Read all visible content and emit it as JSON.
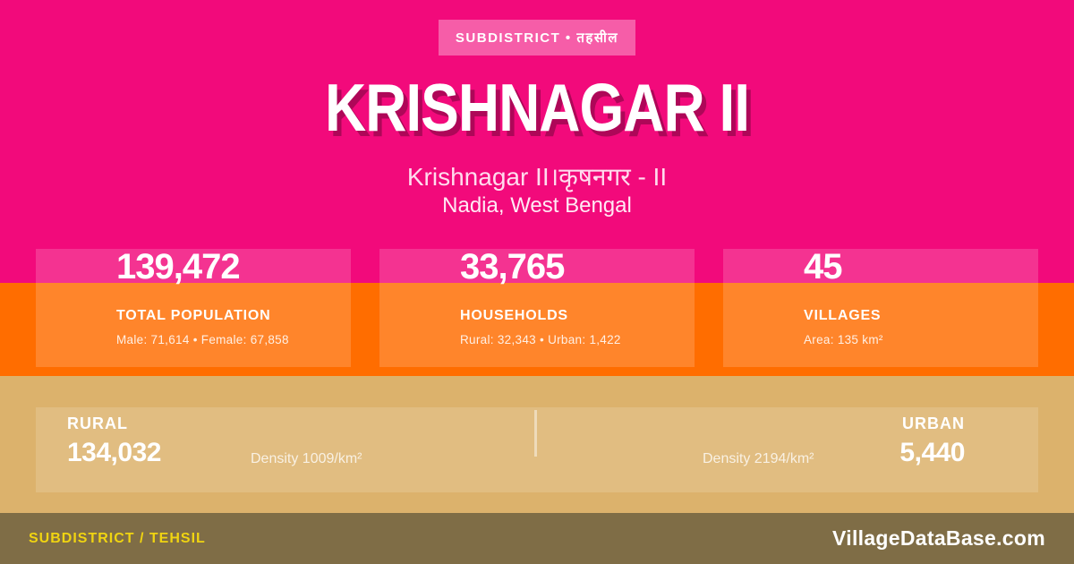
{
  "badge": {
    "label": "SUBDISTRICT • तहसील"
  },
  "header": {
    "title": "KRISHNAGAR II",
    "subtitle": "Krishnagar II।कृषनगर - II",
    "location": "Nadia, West Bengal"
  },
  "stats": [
    {
      "value": "139,472",
      "label": "TOTAL POPULATION",
      "detail": "Male: 71,614 • Female: 67,858"
    },
    {
      "value": "33,765",
      "label": "HOUSEHOLDS",
      "detail": "Rural: 32,343 • Urban: 1,422"
    },
    {
      "value": "45",
      "label": "VILLAGES",
      "detail": "Area: 135 km²"
    }
  ],
  "split": {
    "rural": {
      "label": "RURAL",
      "value": "134,032",
      "density": "Density 1009/km²"
    },
    "urban": {
      "label": "URBAN",
      "value": "5,440",
      "density": "Density 2194/km²"
    }
  },
  "footer": {
    "type_label": "SUBDISTRICT / TEHSIL",
    "brand": "VillageDataBase.com"
  },
  "colors": {
    "pink": "#F20A7B",
    "orange": "#FF6D00",
    "tan": "#DCB26C",
    "footer_olive": "#7F6D46",
    "accent_yellow": "#F0D411",
    "text_white": "#FFFFFF",
    "subtitle_pink": "#FFDCEE"
  }
}
